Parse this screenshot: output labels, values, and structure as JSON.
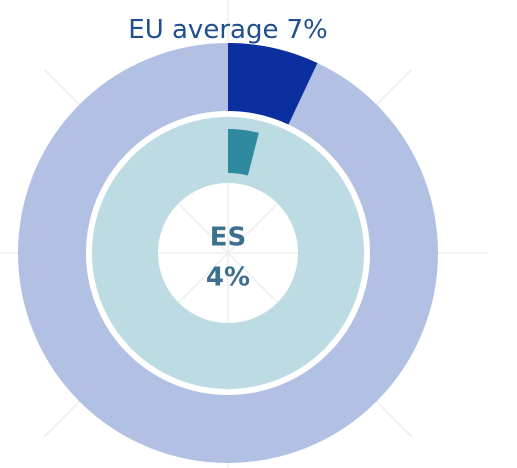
{
  "chart_data": {
    "type": "pie",
    "series": [
      {
        "name": "EU average",
        "values": [
          7
        ],
        "value_labels": [
          "7%"
        ],
        "color": "#0b2f9f",
        "track_color": "#b2c0e4"
      },
      {
        "name": "ES",
        "values": [
          4
        ],
        "value_labels": [
          "4%"
        ],
        "color": "#2f8aa0",
        "track_color": "#bcdbe2"
      }
    ]
  }
}
